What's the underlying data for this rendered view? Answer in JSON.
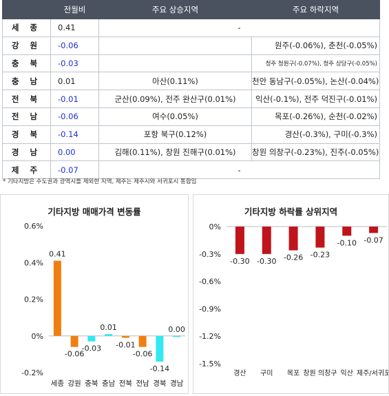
{
  "table": {
    "headers": [
      "",
      "전월비",
      "주요 상승지역",
      "주요 하락지역"
    ],
    "rows": [
      {
        "region": "세 종",
        "mom": "0.41",
        "up": "-",
        "down": "",
        "blue": false,
        "span": true
      },
      {
        "region": "강 원",
        "mom": "-0.06",
        "up": "",
        "down": "원주(-0.06%), 춘천(-0.05%)",
        "blue": true
      },
      {
        "region": "충 북",
        "mom": "-0.03",
        "up": "",
        "down": "청주 청원구(-0.07%), 청주 상당구(-0.05%)",
        "blue": true,
        "small": true
      },
      {
        "region": "충 남",
        "mom": "0.01",
        "up": "아산(0.11%)",
        "down": "천안 동남구(-0.05%), 논산(-0.04%)",
        "blue": false
      },
      {
        "region": "전 북",
        "mom": "-0.01",
        "up": "군산(0.09%), 전주 완산구(0.01%)",
        "down": "익산(-0.1%), 전주 덕진구(-0.01%)",
        "blue": true
      },
      {
        "region": "전 남",
        "mom": "-0.06",
        "up": "여수(0.05%)",
        "down": "목포(-0.26%), 순천(-0.02%)",
        "blue": true
      },
      {
        "region": "경 북",
        "mom": "-0.14",
        "up": "포항 북구(0.12%)",
        "down": "경산(-0.3%), 구미(-0.3%)",
        "blue": true
      },
      {
        "region": "경 남",
        "mom": "0.00",
        "up": "김해(0.11%), 창원 진해구(0.01%)",
        "down": "창원 의창구(-0.23%), 진주(-0.05%)",
        "blue": true
      },
      {
        "region": "제 주",
        "mom": "-0.07",
        "up": "-",
        "down": "",
        "blue": true,
        "span": true
      }
    ]
  },
  "note": "* 기타지방은 수도권과 광역시를 제외한 지역,  제주는 제주시와 서귀포시 통합임",
  "chart_data": [
    {
      "type": "bar",
      "title": "기타지방 매매가격 변동률",
      "categories": [
        "세종",
        "강원",
        "충북",
        "충남",
        "전북",
        "전남",
        "경북",
        "경남"
      ],
      "values": [
        0.41,
        -0.06,
        -0.03,
        0.01,
        -0.01,
        -0.06,
        -0.14,
        0.0
      ],
      "value_labels": [
        "0.41",
        "-0.06",
        "-0.03",
        "0.01",
        "-0.01",
        "-0.06",
        "-0.14",
        "0.00"
      ],
      "bar_colors": [
        "#f07f12",
        "#f07f12",
        "#33e8f2",
        "#33e8f2",
        "#f07f12",
        "#f07f12",
        "#33e8f2",
        "#33e8f2"
      ],
      "yticks": [
        "0.6%",
        "0.4%",
        "0.2%",
        "0%",
        "-0.2%"
      ],
      "ylim": [
        -0.2,
        0.6
      ],
      "grid": false
    },
    {
      "type": "bar",
      "title": "기타지방 하락률 상위지역",
      "categories": [
        "경산",
        "구미",
        "목포",
        "창원 의창구",
        "익산",
        "제주/서귀포"
      ],
      "values": [
        -0.3,
        -0.3,
        -0.26,
        -0.23,
        -0.1,
        -0.07
      ],
      "value_labels": [
        "-0.30",
        "-0.30",
        "-0.26",
        "-0.23",
        "-0.10",
        "-0.07"
      ],
      "bar_color": "#c0141b",
      "yticks": [
        "0%",
        "-0.3%",
        "-0.6%",
        "-0.9%",
        "-1.2%",
        "-1.5%"
      ],
      "ylim": [
        -1.5,
        0
      ],
      "grid": false
    }
  ]
}
